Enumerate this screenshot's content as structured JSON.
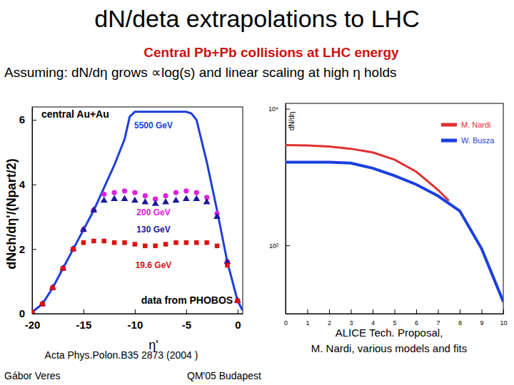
{
  "slide": {
    "title": "dN/deta extrapolations to LHC",
    "subtitle": "Central Pb+Pb collisions at LHC energy",
    "assumption": "Assuming: dN/dη grows ∝log(s) and linear scaling at high η holds",
    "author": "Gábor Veres",
    "venue": "QM'05 Budapest"
  },
  "chart_data": [
    {
      "type": "line",
      "ylabel": "dNch/dη'/(Npart/2)",
      "xlabel": "η'",
      "annotations": [
        "central Au+Au",
        "data from PHOBOS"
      ],
      "caption": "Acta Phys.Polon.B35 2873 (2004 )",
      "xlim": [
        -20,
        0.5
      ],
      "ylim": [
        0,
        6.4
      ],
      "xticks": [
        -20,
        -15,
        -10,
        -5,
        0
      ],
      "yticks": [
        0,
        2,
        4,
        6
      ],
      "series": [
        {
          "name": "5500 GeV",
          "color": "#1f3fd6",
          "marker": "none",
          "line_style": "solid",
          "x": [
            -20,
            -19,
            -18,
            -17,
            -16,
            -15,
            -14,
            -13,
            -12,
            -11,
            -10.5,
            -10,
            -9,
            -8,
            -7,
            -6,
            -5,
            -4.5,
            -4,
            -3,
            -2,
            -1,
            0,
            0.5
          ],
          "values": [
            0.05,
            0.3,
            0.8,
            1.4,
            2.0,
            2.6,
            3.2,
            3.9,
            4.6,
            5.4,
            6.1,
            6.25,
            6.25,
            6.25,
            6.25,
            6.25,
            6.25,
            6.2,
            6.0,
            4.7,
            3.2,
            1.6,
            0.4,
            0.1
          ]
        },
        {
          "name": "200 GeV",
          "color": "#e020e0",
          "marker": "circle",
          "line_style": "none",
          "x": [
            -20,
            -19,
            -18,
            -17,
            -16,
            -15,
            -14,
            -13,
            -12,
            -11,
            -10,
            -9,
            -8,
            -7,
            -6,
            -5,
            -4,
            -3,
            -2,
            -1,
            0
          ],
          "values": [
            0.05,
            0.3,
            0.8,
            1.4,
            2.0,
            2.6,
            3.2,
            3.7,
            3.75,
            3.8,
            3.75,
            3.65,
            3.55,
            3.65,
            3.75,
            3.8,
            3.75,
            3.6,
            3.1,
            1.6,
            0.4
          ]
        },
        {
          "name": "130 GeV",
          "color": "#1a1a9a",
          "marker": "triangle",
          "line_style": "none",
          "x": [
            -20,
            -19,
            -18,
            -17,
            -16,
            -15,
            -14,
            -13,
            -12,
            -11,
            -10,
            -9,
            -8,
            -7,
            -6,
            -5,
            -4,
            -3,
            -2,
            -1,
            0
          ],
          "values": [
            0.05,
            0.3,
            0.8,
            1.4,
            2.0,
            2.6,
            3.2,
            3.5,
            3.55,
            3.55,
            3.5,
            3.45,
            3.4,
            3.45,
            3.5,
            3.55,
            3.55,
            3.45,
            3.0,
            1.6,
            0.4
          ]
        },
        {
          "name": "19.6 GeV",
          "color": "#e01010",
          "marker": "square",
          "line_style": "none",
          "x": [
            -20,
            -19,
            -18,
            -17,
            -16,
            -15,
            -14,
            -13,
            -12,
            -11,
            -10,
            -9,
            -8,
            -7,
            -6,
            -5,
            -4,
            -3,
            -2,
            -1,
            0
          ],
          "values": [
            0.05,
            0.3,
            0.8,
            1.4,
            2.0,
            2.2,
            2.25,
            2.25,
            2.2,
            2.2,
            2.15,
            2.1,
            2.1,
            2.15,
            2.2,
            2.2,
            2.2,
            2.2,
            2.1,
            1.5,
            0.4
          ]
        }
      ]
    },
    {
      "type": "line",
      "log": "y",
      "ylabel": "dN/dη",
      "legend": "upper right",
      "caption": [
        "ALICE Tech. Proposal,",
        "M. Nardi, various models and fits"
      ],
      "xlim": [
        0,
        10
      ],
      "ylim": [
        10,
        12000
      ],
      "xticks": [
        0,
        1,
        2,
        3,
        4,
        5,
        6,
        7,
        8,
        9,
        10
      ],
      "yticks": [
        {
          "value": 100,
          "label": "10²"
        },
        {
          "value": 10000,
          "label": "10⁴"
        }
      ],
      "series": [
        {
          "name": "M. Nardi",
          "color": "#e03030",
          "marker": "none",
          "line_style": "solid",
          "x": [
            0,
            1,
            2,
            3,
            4,
            5,
            6,
            7,
            7.5
          ],
          "values": [
            2950,
            2900,
            2800,
            2600,
            2300,
            1800,
            1200,
            650,
            450
          ]
        },
        {
          "name": "W. Busza",
          "color": "#1a3fe0",
          "marker": "none",
          "line_style": "solid",
          "x": [
            0,
            1,
            2,
            3,
            4,
            5,
            6,
            7,
            8,
            9,
            10
          ],
          "values": [
            1650,
            1650,
            1650,
            1600,
            1350,
            1050,
            780,
            530,
            320,
            90,
            15
          ]
        }
      ]
    }
  ]
}
